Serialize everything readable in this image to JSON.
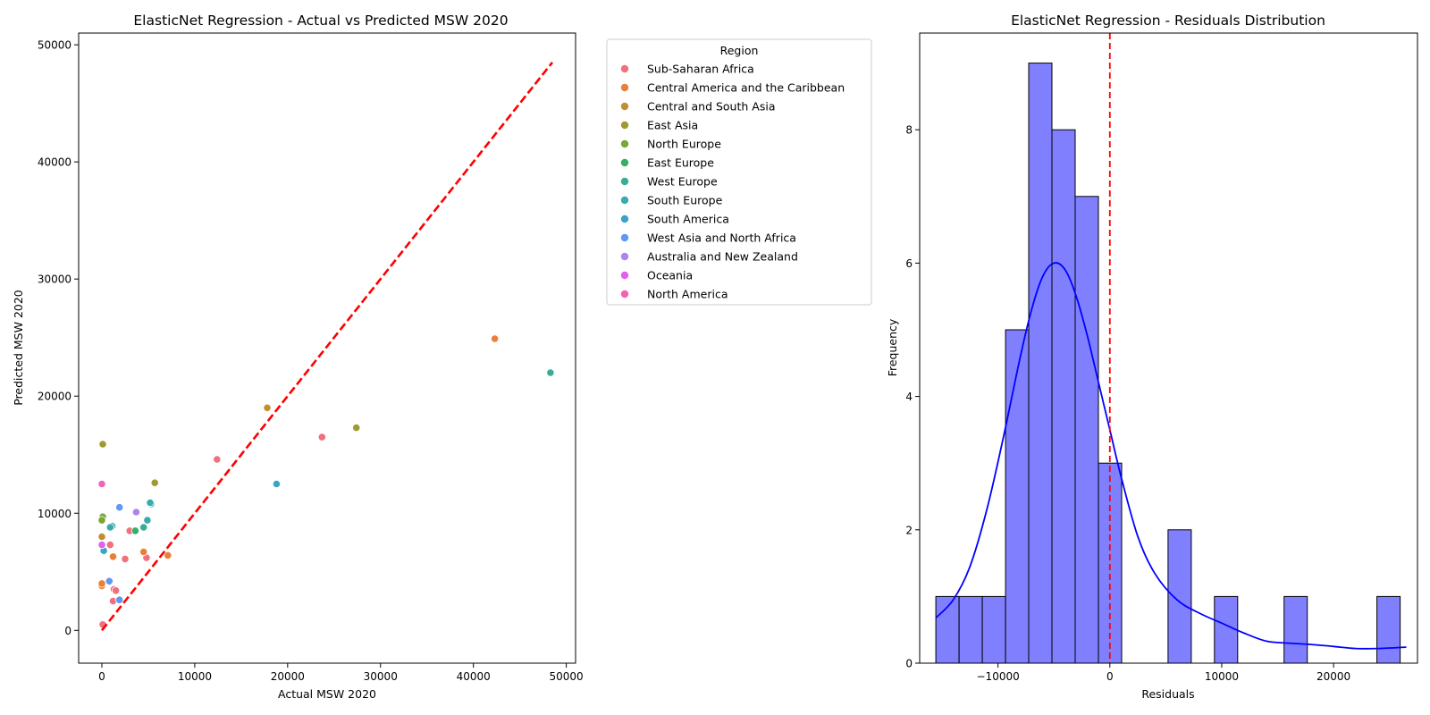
{
  "chart_data": [
    {
      "type": "scatter",
      "title": "ElasticNet Regression - Actual vs Predicted MSW 2020",
      "xlabel": "Actual MSW 2020",
      "ylabel": "Predicted MSW 2020",
      "xlim": [
        -2500,
        51000
      ],
      "ylim": [
        -2800,
        51000
      ],
      "xticks": [
        0,
        10000,
        20000,
        30000,
        40000,
        50000
      ],
      "yticks": [
        0,
        10000,
        20000,
        30000,
        40000,
        50000
      ],
      "reference_line": {
        "x": [
          0,
          48500
        ],
        "y": [
          0,
          48500
        ],
        "color": "#ff0000",
        "style": "dashed"
      },
      "legend": {
        "title": "Region",
        "placement": "outside-right",
        "entries": [
          {
            "name": "Sub-Saharan Africa",
            "color": "#f0707d"
          },
          {
            "name": "Central America and the Caribbean",
            "color": "#e8803a"
          },
          {
            "name": "Central and South Asia",
            "color": "#c28f30"
          },
          {
            "name": "East Asia",
            "color": "#a09a30"
          },
          {
            "name": "North Europe",
            "color": "#76a836"
          },
          {
            "name": "East Europe",
            "color": "#36ad68"
          },
          {
            "name": "West Europe",
            "color": "#37ad96"
          },
          {
            "name": "South Europe",
            "color": "#39abae"
          },
          {
            "name": "South America",
            "color": "#3aa4c8"
          },
          {
            "name": "West Asia and North Africa",
            "color": "#6197f5"
          },
          {
            "name": "Australia and New Zealand",
            "color": "#ad84ef"
          },
          {
            "name": "Oceania",
            "color": "#e25ff0"
          },
          {
            "name": "North America",
            "color": "#f263b8"
          }
        ]
      },
      "points": [
        {
          "x": 12400,
          "y": 14600,
          "region": "Sub-Saharan Africa"
        },
        {
          "x": 23700,
          "y": 16500,
          "region": "Sub-Saharan Africa"
        },
        {
          "x": 3000,
          "y": 8500,
          "region": "Sub-Saharan Africa"
        },
        {
          "x": 4800,
          "y": 6200,
          "region": "Sub-Saharan Africa"
        },
        {
          "x": 2500,
          "y": 6100,
          "region": "Sub-Saharan Africa"
        },
        {
          "x": 900,
          "y": 7300,
          "region": "Sub-Saharan Africa"
        },
        {
          "x": 1300,
          "y": 3500,
          "region": "Sub-Saharan Africa"
        },
        {
          "x": 1500,
          "y": 3400,
          "region": "Sub-Saharan Africa"
        },
        {
          "x": 1200,
          "y": 2500,
          "region": "Sub-Saharan Africa"
        },
        {
          "x": 100,
          "y": 500,
          "region": "Sub-Saharan Africa"
        },
        {
          "x": 42300,
          "y": 24900,
          "region": "Central America and the Caribbean"
        },
        {
          "x": 7100,
          "y": 6400,
          "region": "Central America and the Caribbean"
        },
        {
          "x": 4500,
          "y": 6700,
          "region": "Central America and the Caribbean"
        },
        {
          "x": 1200,
          "y": 6300,
          "region": "Central America and the Caribbean"
        },
        {
          "x": 0,
          "y": 3800,
          "region": "Central America and the Caribbean"
        },
        {
          "x": 0,
          "y": 4000,
          "region": "Central America and the Caribbean"
        },
        {
          "x": 17800,
          "y": 19000,
          "region": "Central and South Asia"
        },
        {
          "x": 0,
          "y": 8000,
          "region": "Central and South Asia"
        },
        {
          "x": 27400,
          "y": 17300,
          "region": "East Asia"
        },
        {
          "x": 5700,
          "y": 12600,
          "region": "East Asia"
        },
        {
          "x": 100,
          "y": 15900,
          "region": "East Asia"
        },
        {
          "x": 100,
          "y": 9700,
          "region": "North Europe"
        },
        {
          "x": 0,
          "y": 9400,
          "region": "North Europe"
        },
        {
          "x": 3600,
          "y": 8500,
          "region": "East Europe"
        },
        {
          "x": 48300,
          "y": 22000,
          "region": "West Europe"
        },
        {
          "x": 4500,
          "y": 8800,
          "region": "West Europe"
        },
        {
          "x": 5300,
          "y": 10800,
          "region": "South Europe"
        },
        {
          "x": 5200,
          "y": 10900,
          "region": "South Europe"
        },
        {
          "x": 4900,
          "y": 9400,
          "region": "South Europe"
        },
        {
          "x": 1100,
          "y": 8900,
          "region": "South Europe"
        },
        {
          "x": 900,
          "y": 8800,
          "region": "South Europe"
        },
        {
          "x": 18800,
          "y": 12500,
          "region": "South America"
        },
        {
          "x": 200,
          "y": 6800,
          "region": "South America"
        },
        {
          "x": 1900,
          "y": 10500,
          "region": "West Asia and North Africa"
        },
        {
          "x": 800,
          "y": 4200,
          "region": "West Asia and North Africa"
        },
        {
          "x": 1900,
          "y": 2600,
          "region": "West Asia and North Africa"
        },
        {
          "x": 3700,
          "y": 10100,
          "region": "Australia and New Zealand"
        },
        {
          "x": 0,
          "y": 7300,
          "region": "Oceania"
        },
        {
          "x": 0,
          "y": 12500,
          "region": "North America"
        }
      ]
    },
    {
      "type": "bar",
      "subtype": "histogram",
      "title": "ElasticNet Regression - Residuals Distribution",
      "xlabel": "Residuals",
      "ylabel": "Frequency",
      "xlim": [
        -17000,
        27500
      ],
      "ylim": [
        0,
        9.45
      ],
      "xticks": [
        -10000,
        0,
        10000,
        20000
      ],
      "yticks": [
        0,
        2,
        4,
        6,
        8
      ],
      "bar_color": "#8080ff",
      "bin_width": 2075,
      "bins": [
        {
          "start": -15550,
          "count": 1
        },
        {
          "start": -13475,
          "count": 1
        },
        {
          "start": -11400,
          "count": 1
        },
        {
          "start": -9325,
          "count": 5
        },
        {
          "start": -7250,
          "count": 9
        },
        {
          "start": -5175,
          "count": 8
        },
        {
          "start": -3100,
          "count": 7
        },
        {
          "start": -1025,
          "count": 3
        },
        {
          "start": 1050,
          "count": 0
        },
        {
          "start": 3125,
          "count": 0
        },
        {
          "start": 5200,
          "count": 2
        },
        {
          "start": 7275,
          "count": 0
        },
        {
          "start": 9350,
          "count": 1
        },
        {
          "start": 11425,
          "count": 0
        },
        {
          "start": 13500,
          "count": 0
        },
        {
          "start": 15575,
          "count": 1
        },
        {
          "start": 17650,
          "count": 0
        },
        {
          "start": 19725,
          "count": 0
        },
        {
          "start": 21800,
          "count": 0
        },
        {
          "start": 23875,
          "count": 1
        }
      ],
      "kde": {
        "color": "#0000ff",
        "x": [
          -15550,
          -14000,
          -12500,
          -11000,
          -9500,
          -8000,
          -7000,
          -6000,
          -5000,
          -4000,
          -3000,
          -2000,
          -1000,
          0,
          1000,
          2500,
          4000,
          6000,
          8000,
          10000,
          12000,
          14000,
          16000,
          18000,
          20000,
          22000,
          24000,
          26500
        ],
        "y": [
          0.68,
          0.95,
          1.45,
          2.3,
          3.4,
          4.6,
          5.3,
          5.8,
          6.0,
          5.9,
          5.5,
          4.9,
          4.2,
          3.5,
          2.8,
          1.9,
          1.35,
          0.95,
          0.75,
          0.6,
          0.45,
          0.33,
          0.3,
          0.28,
          0.25,
          0.22,
          0.22,
          0.24
        ]
      },
      "reference_line": {
        "x": 0,
        "color": "#ff0000",
        "style": "dashed"
      }
    }
  ]
}
